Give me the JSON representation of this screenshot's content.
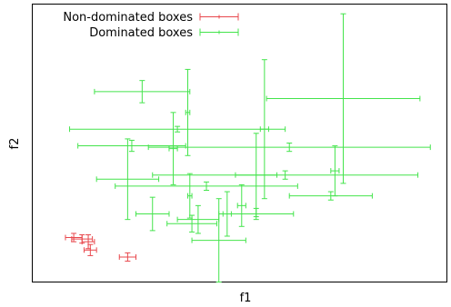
{
  "chart_data": {
    "type": "scatter",
    "title": "",
    "xlabel": "f1",
    "ylabel": "f2",
    "xlim": [
      0,
      100
    ],
    "ylim": [
      0,
      100
    ],
    "grid": false,
    "show_ticks": false,
    "legend_position": "top-left",
    "series": [
      {
        "name": "Non-dominated boxes",
        "color": "#e8484d",
        "boxes": [
          {
            "x": 10.0,
            "x_err": 2.0,
            "y": 16.0,
            "y_err": 1.5
          },
          {
            "x": 12.0,
            "x_err": 2.5,
            "y": 15.5,
            "y_err": 1.5
          },
          {
            "x": 13.5,
            "x_err": 1.5,
            "y": 14.5,
            "y_err": 2.5
          },
          {
            "x": 14.0,
            "x_err": 1.5,
            "y": 11.5,
            "y_err": 2.0
          },
          {
            "x": 23.0,
            "x_err": 2.0,
            "y": 9.0,
            "y_err": 1.5
          }
        ]
      },
      {
        "name": "Dominated boxes",
        "color": "#44e44c",
        "boxes": [
          {
            "x": 75.0,
            "x_err": 18.5,
            "y": 66.0,
            "y_err": 30.5
          },
          {
            "x": 26.5,
            "x_err": 11.5,
            "y": 68.5,
            "y_err": 4.0
          },
          {
            "x": 37.5,
            "x_err": 0.5,
            "y": 61.0,
            "y_err": 15.5
          },
          {
            "x": 56.0,
            "x_err": 1.0,
            "y": 55.0,
            "y_err": 25.0
          },
          {
            "x": 35.0,
            "x_err": 26.0,
            "y": 55.0,
            "y_err": 1.0
          },
          {
            "x": 34.0,
            "x_err": 1.0,
            "y": 48.0,
            "y_err": 13.0
          },
          {
            "x": 24.0,
            "x_err": 13.0,
            "y": 49.0,
            "y_err": 2.0
          },
          {
            "x": 62.0,
            "x_err": 34.0,
            "y": 48.5,
            "y_err": 1.5
          },
          {
            "x": 73.0,
            "x_err": 1.0,
            "y": 40.0,
            "y_err": 9.0
          },
          {
            "x": 23.0,
            "x_err": 7.5,
            "y": 37.0,
            "y_err": 14.5
          },
          {
            "x": 54.0,
            "x_err": 5.0,
            "y": 38.5,
            "y_err": 15.0
          },
          {
            "x": 61.0,
            "x_err": 32.0,
            "y": 38.5,
            "y_err": 1.5
          },
          {
            "x": 42.0,
            "x_err": 22.0,
            "y": 34.5,
            "y_err": 1.5
          },
          {
            "x": 38.0,
            "x_err": 0.5,
            "y": 31.0,
            "y_err": 8.0
          },
          {
            "x": 72.0,
            "x_err": 10.0,
            "y": 31.0,
            "y_err": 1.5
          },
          {
            "x": 29.0,
            "x_err": 4.0,
            "y": 24.5,
            "y_err": 6.0
          },
          {
            "x": 50.5,
            "x_err": 1.0,
            "y": 27.5,
            "y_err": 7.5
          },
          {
            "x": 47.0,
            "x_err": 1.0,
            "y": 24.5,
            "y_err": 8.0
          },
          {
            "x": 40.0,
            "x_err": 5.0,
            "y": 22.5,
            "y_err": 5.0
          },
          {
            "x": 38.5,
            "x_err": 6.0,
            "y": 21.0,
            "y_err": 3.0
          },
          {
            "x": 54.0,
            "x_err": 9.0,
            "y": 24.5,
            "y_err": 2.0
          },
          {
            "x": 45.0,
            "x_err": 6.5,
            "y": 15.0,
            "y_err": 15.0
          }
        ]
      }
    ]
  }
}
